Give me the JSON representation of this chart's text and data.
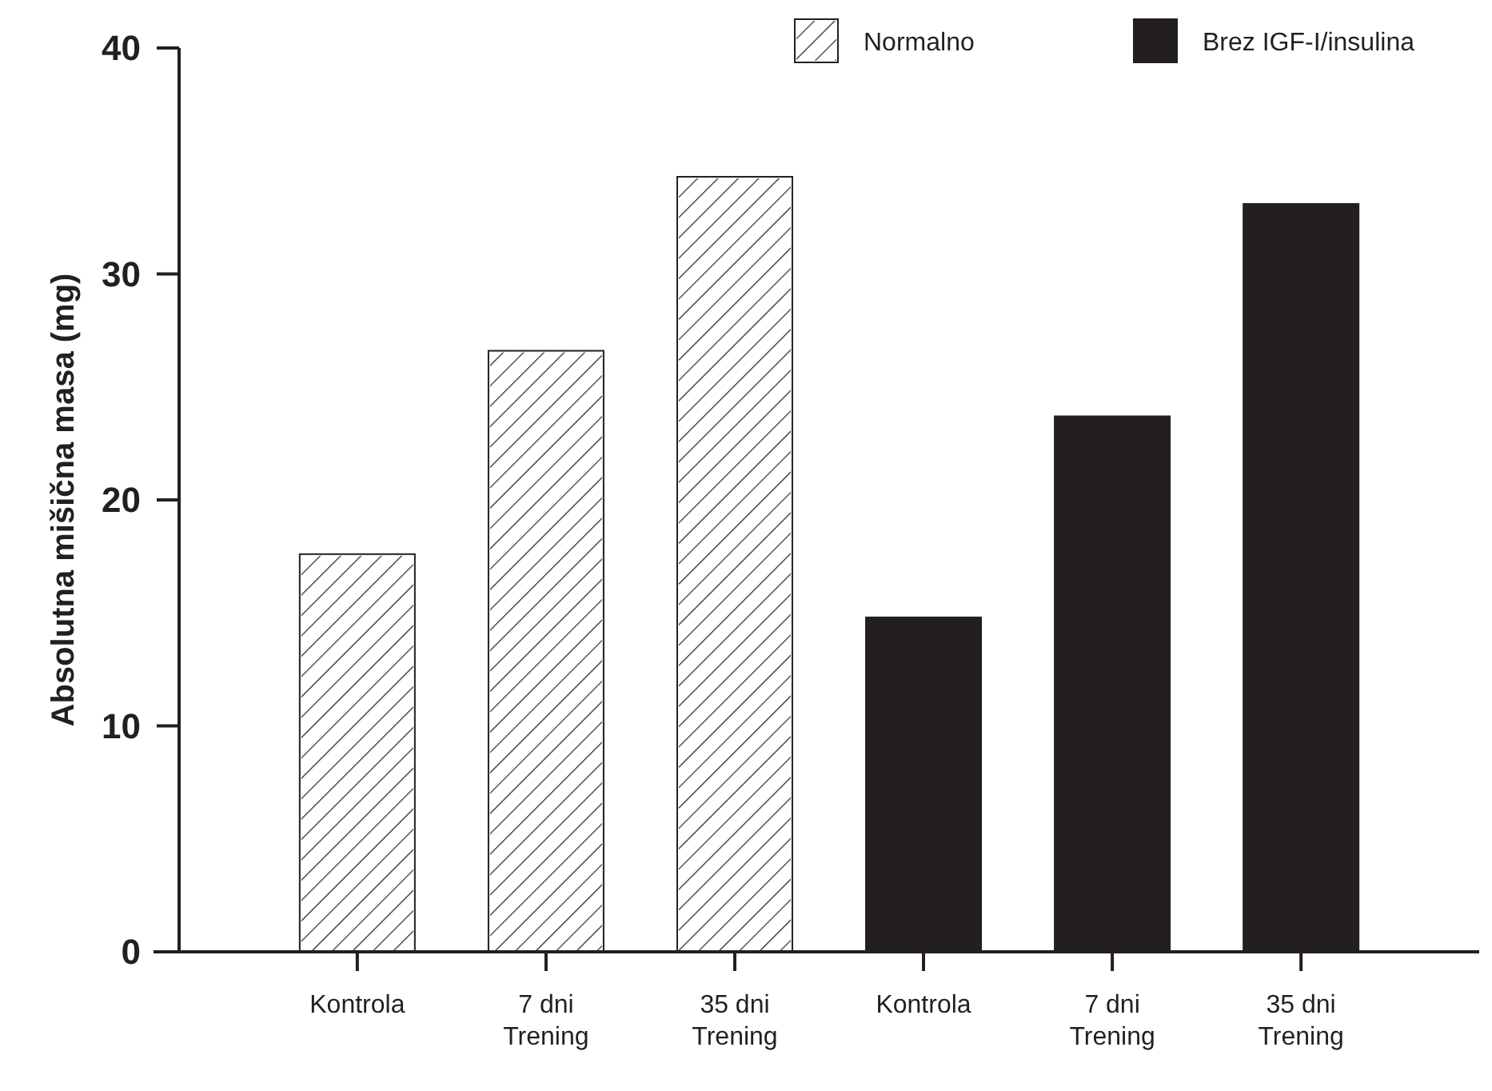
{
  "chart_data": {
    "type": "bar",
    "ylabel": "Absolutna mišična masa (mg)",
    "categories": [
      "Kontrola",
      "7 dni Trening",
      "35 dni Trening",
      "Kontrola",
      "7 dni Trening",
      "35 dni Trening"
    ],
    "series": [
      {
        "name": "Normalno",
        "color": "#ffffff",
        "values": [
          17.6,
          26.6,
          34.3,
          null,
          null,
          null
        ]
      },
      {
        "name": "Brez IGF-I/insulina",
        "color": "#231f20",
        "values": [
          null,
          null,
          null,
          14.8,
          23.7,
          33.1
        ]
      }
    ],
    "ylim": [
      0,
      40
    ],
    "yticks": [
      0,
      10,
      20,
      30,
      40
    ],
    "grid": false,
    "legend": "top right"
  }
}
